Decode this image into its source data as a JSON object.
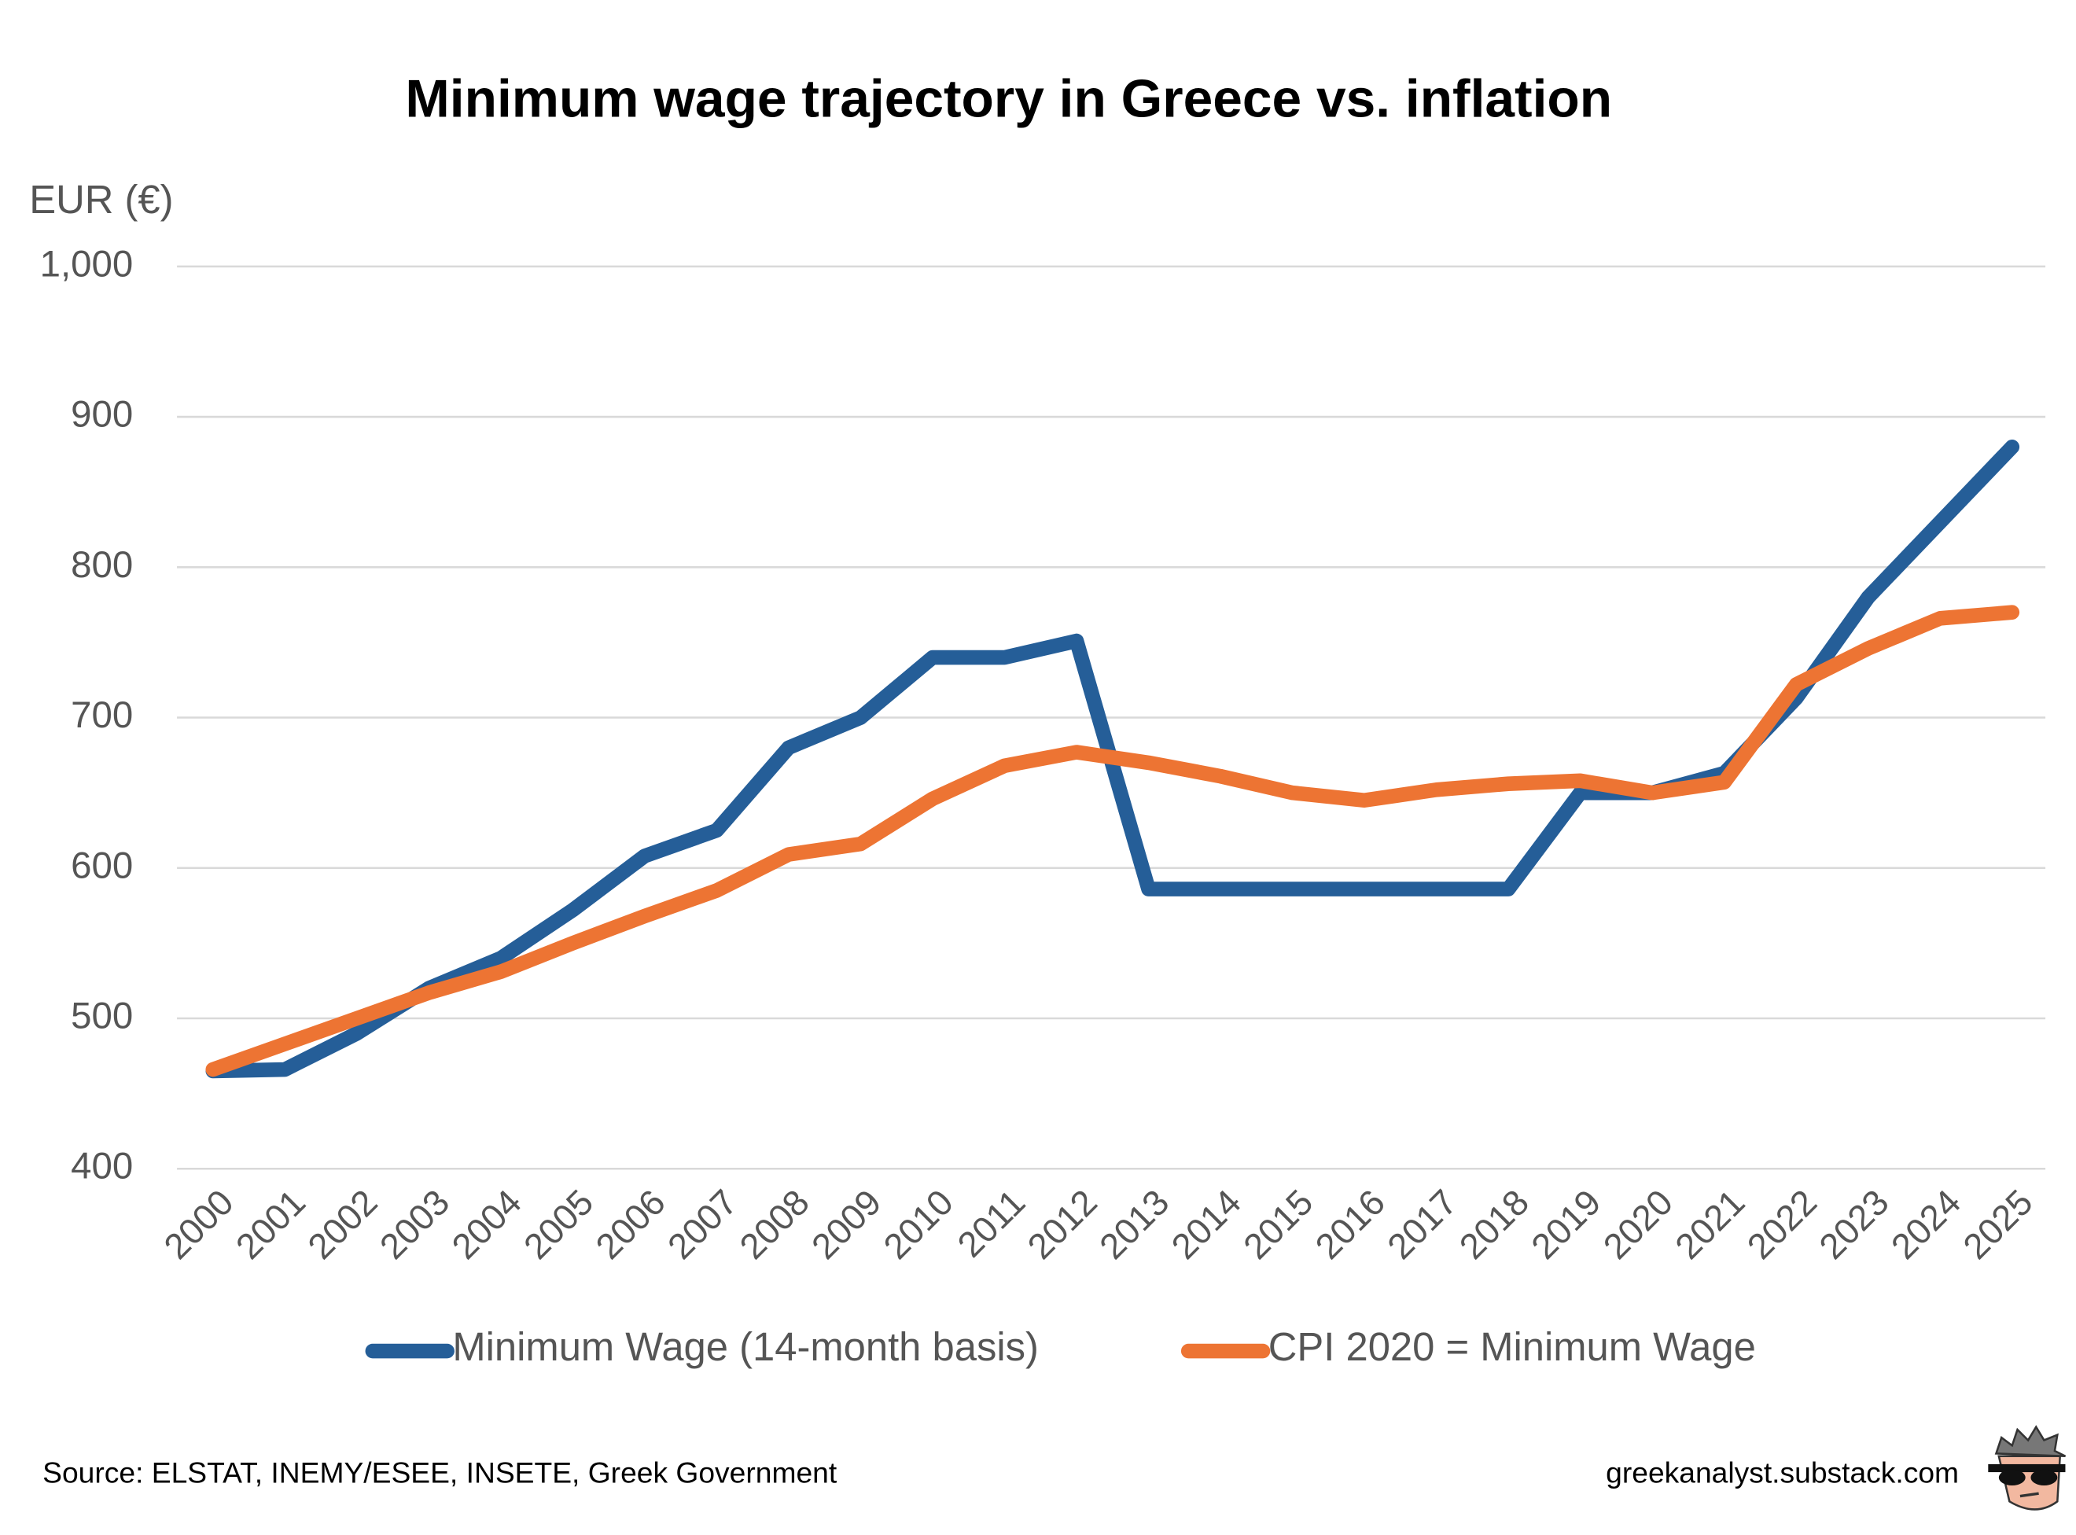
{
  "chart_data": {
    "type": "line",
    "title": "Minimum wage trajectory in Greece vs. inflation",
    "y_label": "EUR (€)",
    "categories": [
      "2000",
      "2001",
      "2002",
      "2003",
      "2004",
      "2005",
      "2006",
      "2007",
      "2008",
      "2009",
      "2010",
      "2011",
      "2012",
      "2013",
      "2014",
      "2015",
      "2016",
      "2017",
      "2018",
      "2019",
      "2020",
      "2021",
      "2022",
      "2023",
      "2024",
      "2025"
    ],
    "series": [
      {
        "name": "Minimum Wage (14-month basis)",
        "color": "#255e98",
        "values": [
          465,
          466,
          490,
          520,
          540,
          572,
          608,
          625,
          680,
          700,
          740,
          740,
          751,
          586,
          586,
          586,
          586,
          586,
          586,
          650,
          650,
          663,
          713,
          780,
          830,
          880
        ]
      },
      {
        "name": "CPI 2020 = Minimum Wage",
        "color": "#ed7433",
        "values": [
          466,
          483,
          500,
          517,
          531,
          550,
          568,
          585,
          609,
          616,
          646,
          668,
          677,
          670,
          661,
          650,
          645,
          652,
          656,
          658,
          650,
          657,
          722,
          746,
          766,
          770
        ]
      }
    ],
    "ylim": [
      400,
      1000
    ],
    "yticks": [
      400,
      500,
      600,
      700,
      800,
      900,
      {
        "value": 1000,
        "label": "1,000"
      }
    ],
    "grid": true,
    "legend": "bottom",
    "source": "Source: ELSTAT, INEMY/ESEE, INSETE, Greek Government",
    "website": "greekanalyst.substack.com"
  }
}
